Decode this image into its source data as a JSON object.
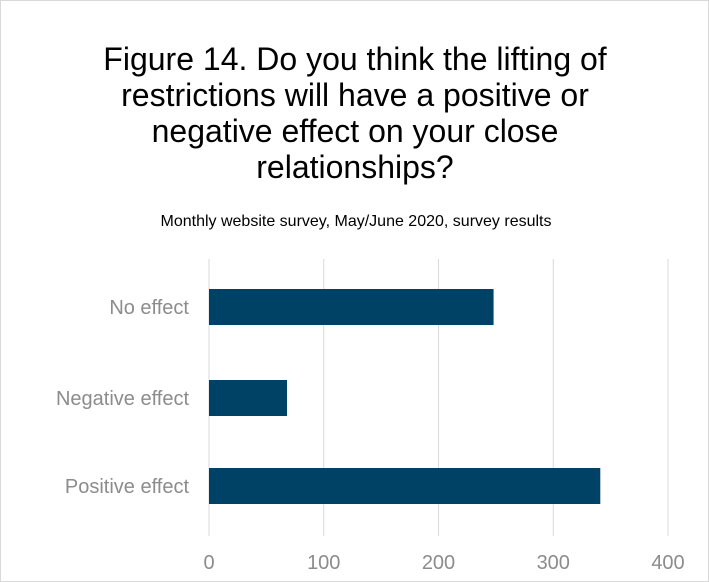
{
  "chart_data": {
    "type": "bar",
    "orientation": "horizontal",
    "title": "Figure 14. Do you think the lifting of restrictions will have a positive or negative effect on your close relationships?",
    "subtitle": "Monthly website survey, May/June 2020, survey results",
    "categories": [
      "No effect",
      "Negative effect",
      "Positive effect"
    ],
    "values": [
      248,
      68,
      341
    ],
    "xlim": [
      0,
      400
    ],
    "xticks": [
      0,
      100,
      200,
      300,
      400
    ],
    "grid": true,
    "bar_color": "#004266"
  }
}
